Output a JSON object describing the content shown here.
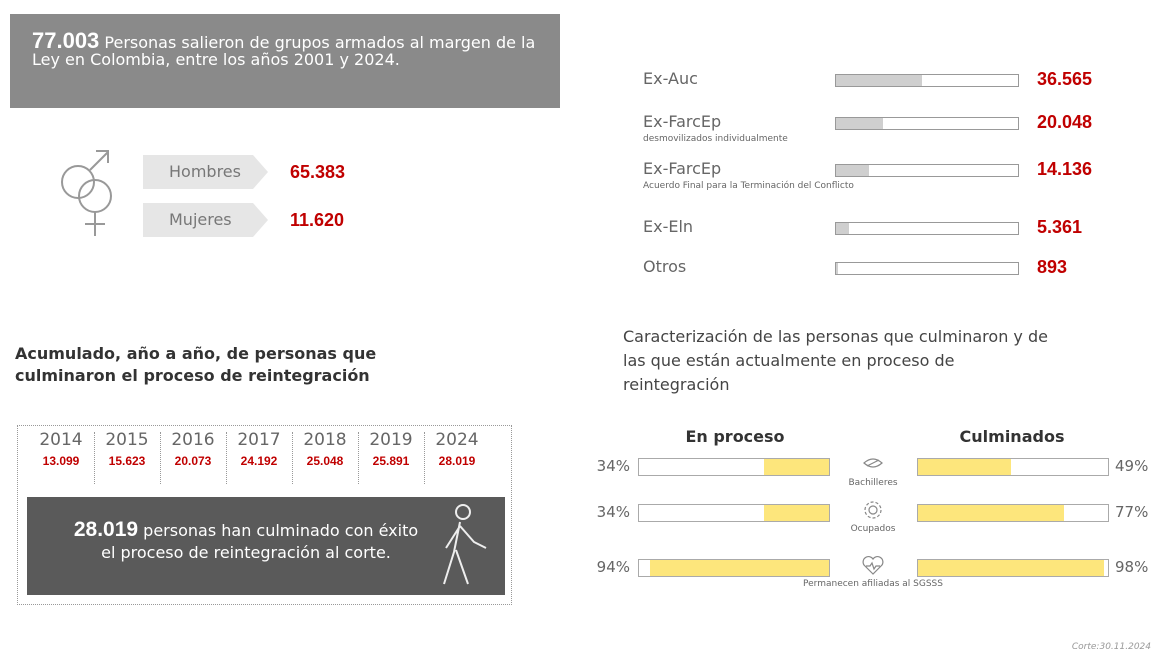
{
  "header": {
    "number": {
      "value": 77003,
      "label": "77.003"
    },
    "text": "Personas salieron de grupos armados al margen de la Ley en Colombia, entre los años 2001 y 2024."
  },
  "gender": [
    {
      "label": "Hombres",
      "value": "65.383"
    },
    {
      "label": "Mujeres",
      "value": "11.620"
    }
  ],
  "groups": [
    {
      "label": "Ex-Auc",
      "value": {
        "value": 36565,
        "label": "36.565"
      }
    },
    {
      "label": "Ex-FarcEp",
      "sublabel": "desmovilizados individualmente",
      "value": {
        "value": 20048,
        "label": "20.048"
      }
    },
    {
      "label": "Ex-FarcEp",
      "sublabel": "Acuerdo Final para la Terminación del Conflicto",
      "value": {
        "value": 14136,
        "label": "14.136"
      }
    },
    {
      "label": "Ex-Eln",
      "value": {
        "value": 5361,
        "label": "5.361"
      }
    },
    {
      "label": "Otros",
      "value": {
        "value": 893,
        "label": "893"
      }
    }
  ],
  "timeline": {
    "title": "Acumulado, año a año, de personas que culminaron el proceso de reintegración",
    "years": [
      {
        "year": "2014",
        "value": "13.099"
      },
      {
        "year": "2015",
        "value": "15.623"
      },
      {
        "year": "2016",
        "value": "20.073"
      },
      {
        "year": "2017",
        "value": "24.192"
      },
      {
        "year": "2018",
        "value": "25.048"
      },
      {
        "year": "2019",
        "value": "25.891"
      },
      {
        "year": "2024",
        "value": "28.019"
      }
    ],
    "summary_number": "28.019",
    "summary_text": "personas han culminado con éxito el proceso de reintegración al corte."
  },
  "characterization": {
    "title": "Caracterización de las personas que culminaron y de las que están actualmente en proceso de reintegración",
    "headers": [
      "En proceso",
      "Culminados"
    ],
    "rows": [
      {
        "label": "Bachilleres",
        "en_proceso": {
          "value": 34,
          "label": "34%"
        },
        "culminados": {
          "value": 49,
          "label": "49%"
        }
      },
      {
        "label": "Ocupados",
        "en_proceso": {
          "value": 34,
          "label": "34%"
        },
        "culminados": {
          "value": 77,
          "label": "77%"
        }
      },
      {
        "label": "Permanecen afiliadas al SGSSS",
        "en_proceso": {
          "value": 94,
          "label": "94%"
        },
        "culminados": {
          "value": 98,
          "label": "98%"
        }
      }
    ]
  },
  "footer": "Corte:30.11.2024"
}
